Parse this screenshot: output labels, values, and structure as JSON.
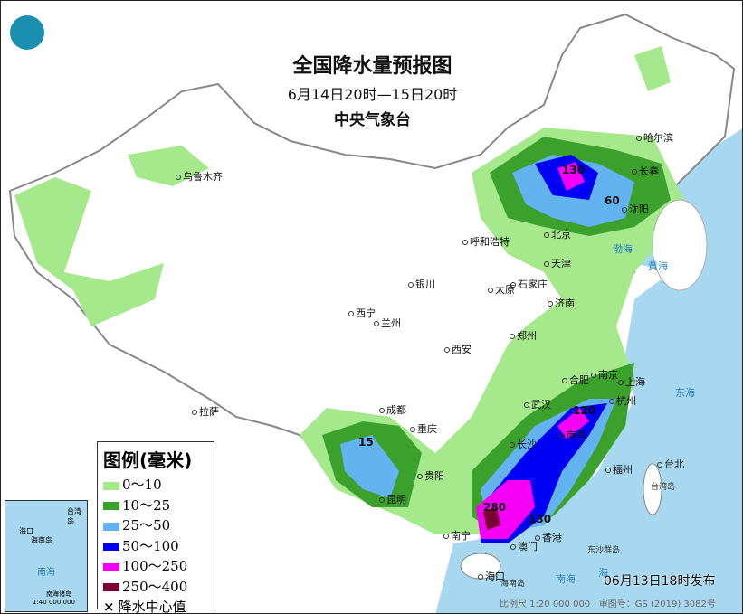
{
  "title": "全国降水量预报图",
  "period": "6月14日20时—15日20时",
  "agency": "中央气象台",
  "legend": {
    "title": "图例(毫米)",
    "items": [
      {
        "label": "0～10",
        "color": "#a6e88c"
      },
      {
        "label": "10～25",
        "color": "#3ca02c"
      },
      {
        "label": "25～50",
        "color": "#62b3f0"
      },
      {
        "label": "50～100",
        "color": "#0000f5"
      },
      {
        "label": "100～250",
        "color": "#f500f5"
      },
      {
        "label": "250～400",
        "color": "#7a0034"
      }
    ],
    "center_label": "降水中心值"
  },
  "colors": {
    "sea": "#a8d8f0",
    "land": "#ffffff",
    "border": "#888888"
  },
  "cities": [
    "乌鲁木齐",
    "哈尔滨",
    "长春",
    "沈阳",
    "呼和浩特",
    "北京",
    "天津",
    "银川",
    "太原",
    "石家庄",
    "济南",
    "西宁",
    "兰州",
    "郑州",
    "西安",
    "合肥",
    "南京",
    "上海",
    "杭州",
    "武汉",
    "成都",
    "重庆",
    "拉萨",
    "长沙",
    "南昌",
    "福州",
    "台北",
    "贵阳",
    "昆明",
    "南宁",
    "香港",
    "澳门",
    "海口"
  ],
  "centers": [
    "130",
    "60",
    "120",
    "15",
    "280",
    "130"
  ],
  "seas": [
    "渤海",
    "黄海",
    "东海",
    "南海",
    "海"
  ],
  "islands": [
    "海南岛",
    "台湾岛",
    "东沙群岛"
  ],
  "inset": {
    "labels": [
      "南海",
      "海南岛",
      "海口",
      "台湾岛",
      "南海诸岛",
      "1:40 000 000"
    ]
  },
  "issue": "06月13日18时发布",
  "scale": "比例尺 1:20 000 000",
  "map_no": "审图号：GS (2019) 3082号"
}
